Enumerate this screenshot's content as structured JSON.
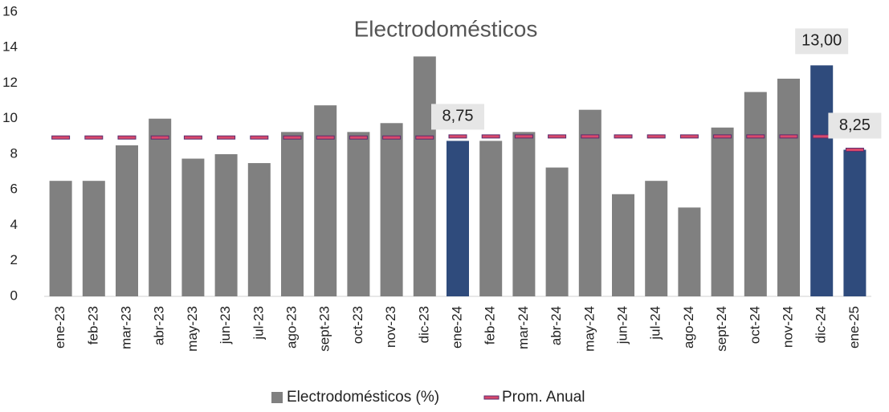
{
  "chart_data": {
    "type": "bar",
    "title": "Electrodomésticos",
    "categories": [
      "ene-23",
      "feb-23",
      "mar-23",
      "abr-23",
      "may-23",
      "jun-23",
      "jul-23",
      "ago-23",
      "sept-23",
      "oct-23",
      "nov-23",
      "dic-23",
      "ene-24",
      "feb-24",
      "mar-24",
      "abr-24",
      "may-24",
      "jun-24",
      "jul-24",
      "ago-24",
      "sept-24",
      "oct-24",
      "nov-24",
      "dic-24",
      "ene-25"
    ],
    "series": [
      {
        "name": "Electrodomésticos (%)",
        "color": "#808080",
        "colors": [
          "#808080",
          "#808080",
          "#808080",
          "#808080",
          "#808080",
          "#808080",
          "#808080",
          "#808080",
          "#808080",
          "#808080",
          "#808080",
          "#808080",
          "#2f4b7c",
          "#808080",
          "#808080",
          "#808080",
          "#808080",
          "#808080",
          "#808080",
          "#808080",
          "#808080",
          "#808080",
          "#808080",
          "#2f4b7c",
          "#2f4b7c"
        ],
        "values": [
          6.5,
          6.5,
          8.5,
          10,
          7.75,
          8,
          7.5,
          9.25,
          10.75,
          9.25,
          9.75,
          13.5,
          8.75,
          8.75,
          9.25,
          7.25,
          10.5,
          5.75,
          6.5,
          5,
          9.5,
          11.5,
          12.25,
          13,
          8.25
        ],
        "value_labels": [
          null,
          null,
          null,
          null,
          null,
          null,
          null,
          null,
          null,
          null,
          null,
          null,
          "8,75",
          null,
          null,
          null,
          null,
          null,
          null,
          null,
          null,
          null,
          null,
          "13,00",
          "8,25"
        ]
      },
      {
        "name": "Prom. Anual",
        "color": "#d9486b",
        "marker": "dash",
        "values": [
          8.94,
          8.94,
          8.94,
          8.94,
          8.94,
          8.94,
          8.94,
          8.94,
          8.94,
          8.94,
          8.94,
          8.94,
          9,
          9,
          9,
          9,
          9,
          9,
          9,
          9,
          9,
          9,
          9,
          9,
          8.25
        ]
      }
    ],
    "ylim": [
      0,
      16
    ],
    "yticks": [
      0,
      2,
      4,
      6,
      8,
      10,
      12,
      14,
      16
    ],
    "grid": false,
    "legend": "bottom"
  }
}
